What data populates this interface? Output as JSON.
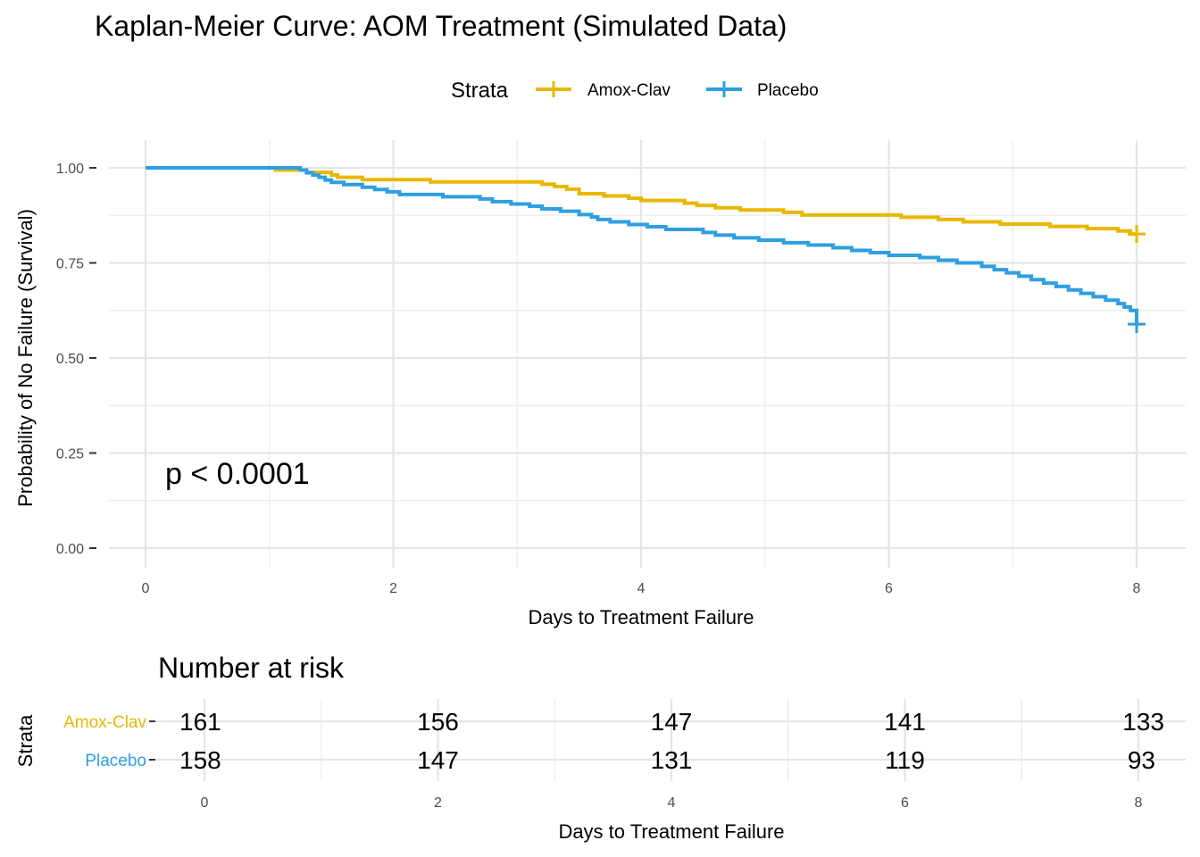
{
  "chart_data": [
    {
      "type": "line",
      "subtype": "kaplan-meier-step",
      "title": "Kaplan-Meier Curve: AOM Treatment (Simulated Data)",
      "xlabel": "Days to Treatment Failure",
      "ylabel": "Probability of No Failure (Survival)",
      "xlim": [
        -0.2,
        8.2
      ],
      "ylim": [
        0,
        1
      ],
      "x_ticks": [
        0,
        2,
        4,
        6,
        8
      ],
      "x_tick_labels": [
        "0",
        "2",
        "4",
        "6",
        "8"
      ],
      "y_ticks": [
        0,
        0.25,
        0.5,
        0.75,
        1.0
      ],
      "y_tick_labels": [
        "0.00",
        "0.25",
        "0.50",
        "0.75",
        "1.00"
      ],
      "grid": true,
      "legend": {
        "title": "Strata",
        "position": "top"
      },
      "annotation": "p < 0.0001",
      "series": [
        {
          "name": "Amox-Clav",
          "color": "#E7B800",
          "steps": [
            [
              0,
              1.0
            ],
            [
              1.05,
              0.994
            ],
            [
              1.25,
              0.994
            ],
            [
              1.3,
              0.988
            ],
            [
              1.5,
              0.981
            ],
            [
              1.55,
              0.975
            ],
            [
              1.75,
              0.969
            ],
            [
              2.3,
              0.963
            ],
            [
              2.6,
              0.963
            ],
            [
              3.2,
              0.957
            ],
            [
              3.3,
              0.951
            ],
            [
              3.4,
              0.944
            ],
            [
              3.5,
              0.932
            ],
            [
              3.7,
              0.926
            ],
            [
              3.9,
              0.92
            ],
            [
              4.0,
              0.914
            ],
            [
              4.35,
              0.907
            ],
            [
              4.45,
              0.901
            ],
            [
              4.6,
              0.895
            ],
            [
              4.8,
              0.889
            ],
            [
              5.15,
              0.883
            ],
            [
              5.3,
              0.876
            ],
            [
              6.1,
              0.87
            ],
            [
              6.4,
              0.864
            ],
            [
              6.6,
              0.858
            ],
            [
              6.9,
              0.852
            ],
            [
              7.3,
              0.846
            ],
            [
              7.6,
              0.84
            ],
            [
              7.85,
              0.834
            ],
            [
              7.95,
              0.826
            ],
            [
              8.0,
              0.826
            ]
          ],
          "censor_marks": [
            [
              8.0,
              0.826
            ]
          ]
        },
        {
          "name": "Placebo",
          "color": "#2E9FDF",
          "steps": [
            [
              0,
              1.0
            ],
            [
              1.25,
              0.994
            ],
            [
              1.3,
              0.987
            ],
            [
              1.35,
              0.981
            ],
            [
              1.4,
              0.975
            ],
            [
              1.45,
              0.968
            ],
            [
              1.5,
              0.962
            ],
            [
              1.6,
              0.956
            ],
            [
              1.75,
              0.949
            ],
            [
              1.85,
              0.943
            ],
            [
              1.95,
              0.937
            ],
            [
              2.05,
              0.93
            ],
            [
              2.4,
              0.924
            ],
            [
              2.7,
              0.918
            ],
            [
              2.8,
              0.911
            ],
            [
              2.95,
              0.905
            ],
            [
              3.1,
              0.899
            ],
            [
              3.2,
              0.892
            ],
            [
              3.35,
              0.886
            ],
            [
              3.5,
              0.877
            ],
            [
              3.6,
              0.871
            ],
            [
              3.65,
              0.864
            ],
            [
              3.75,
              0.858
            ],
            [
              3.9,
              0.851
            ],
            [
              4.05,
              0.845
            ],
            [
              4.2,
              0.838
            ],
            [
              4.5,
              0.83
            ],
            [
              4.6,
              0.823
            ],
            [
              4.75,
              0.816
            ],
            [
              4.95,
              0.81
            ],
            [
              5.15,
              0.803
            ],
            [
              5.35,
              0.797
            ],
            [
              5.55,
              0.79
            ],
            [
              5.7,
              0.783
            ],
            [
              5.85,
              0.777
            ],
            [
              6.0,
              0.77
            ],
            [
              6.25,
              0.764
            ],
            [
              6.4,
              0.757
            ],
            [
              6.55,
              0.75
            ],
            [
              6.75,
              0.741
            ],
            [
              6.85,
              0.732
            ],
            [
              6.95,
              0.724
            ],
            [
              7.05,
              0.715
            ],
            [
              7.15,
              0.706
            ],
            [
              7.25,
              0.697
            ],
            [
              7.35,
              0.688
            ],
            [
              7.45,
              0.679
            ],
            [
              7.55,
              0.67
            ],
            [
              7.65,
              0.661
            ],
            [
              7.75,
              0.652
            ],
            [
              7.85,
              0.643
            ],
            [
              7.9,
              0.634
            ],
            [
              7.95,
              0.625
            ],
            [
              8.0,
              0.6
            ],
            [
              8.0,
              0.589
            ]
          ],
          "censor_marks": [
            [
              8.0,
              0.589
            ]
          ]
        }
      ]
    },
    {
      "type": "table",
      "title": "Number at risk",
      "xlabel": "Days to Treatment Failure",
      "ylabel": "Strata",
      "x_ticks": [
        0,
        2,
        4,
        6,
        8
      ],
      "x_tick_labels": [
        "0",
        "2",
        "4",
        "6",
        "8"
      ],
      "xlim": [
        -0.2,
        8.2
      ],
      "rows": [
        {
          "name": "Amox-Clav",
          "color": "#E7B800",
          "values": [
            "161",
            "156",
            "147",
            "141",
            "133"
          ]
        },
        {
          "name": "Placebo",
          "color": "#2E9FDF",
          "values": [
            "158",
            "147",
            "131",
            "119",
            "93"
          ]
        }
      ]
    }
  ]
}
